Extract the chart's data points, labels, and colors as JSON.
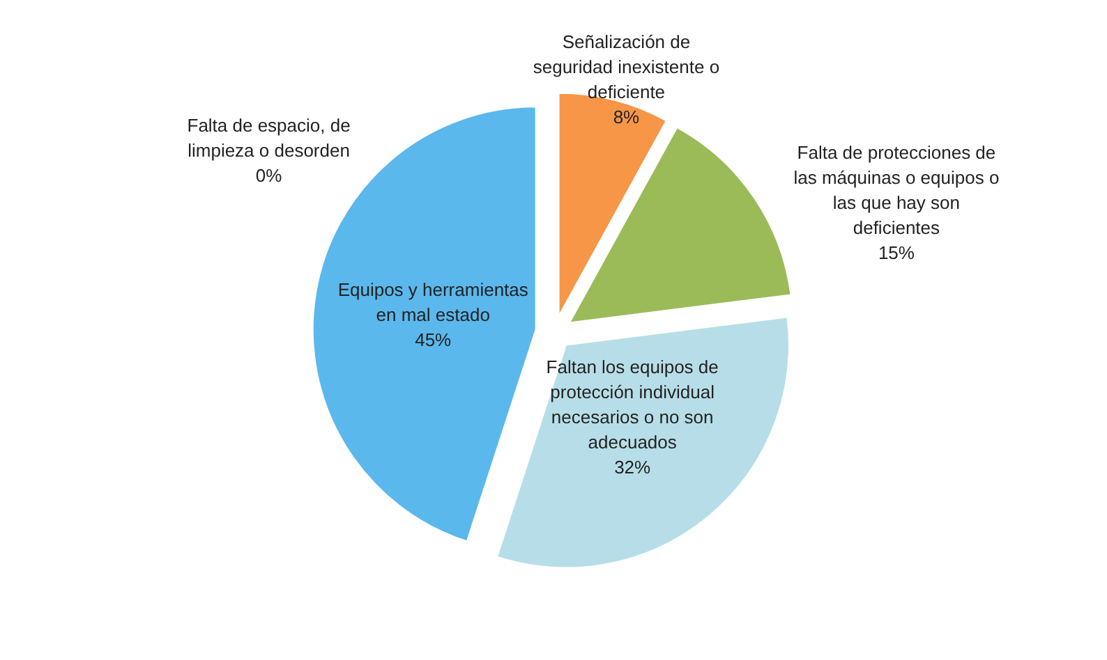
{
  "chart_data": {
    "type": "pie",
    "categories": [
      "Señalización de seguridad inexistente o deficiente",
      "Falta de protecciones de las máquinas o equipos o las que hay son deficientes",
      "Faltan los equipos de protección individual necesarios o no son adecuados",
      "Equipos y herramientas en mal estado",
      "Falta de espacio, de limpieza o desorden"
    ],
    "values": [
      8,
      15,
      32,
      45,
      0
    ],
    "value_labels": [
      "8%",
      "15%",
      "32%",
      "45%",
      "0%"
    ],
    "colors": [
      "#f79646",
      "#9bbb59",
      "#b7dee8",
      "#5bb8ec",
      "#4f81bd"
    ]
  }
}
